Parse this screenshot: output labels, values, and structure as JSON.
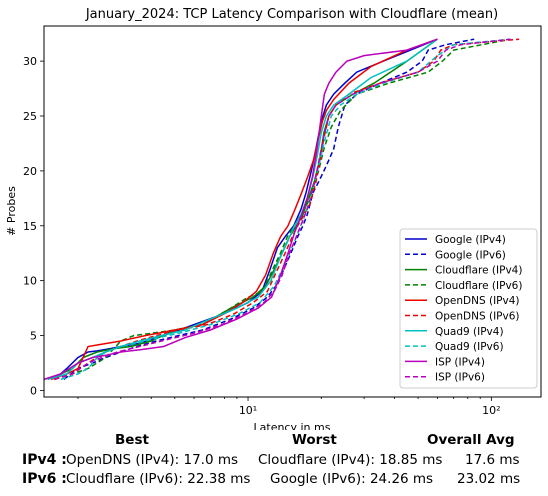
{
  "chart_data": {
    "type": "line",
    "title": "January_2024: TCP Latency Comparison with Cloudflare (mean)",
    "xlabel": "Latency in ms",
    "ylabel": "# Probes",
    "xscale": "log",
    "xlim": [
      1.45,
      160
    ],
    "ylim": [
      -0.6,
      33.2
    ],
    "xticks": [
      {
        "value": 10,
        "label": "10¹"
      },
      {
        "value": 100,
        "label": "10²"
      }
    ],
    "yticks": [
      0,
      5,
      10,
      15,
      20,
      25,
      30
    ],
    "grid": false,
    "legend_position": "lower-right",
    "series": [
      {
        "name": "Google (IPv4)",
        "color": "#0000cc",
        "dash": "solid",
        "x": [
          1.6,
          1.8,
          2.0,
          2.2,
          2.4,
          2.7,
          3.0,
          3.6,
          4.5,
          6.0,
          8.0,
          10.0,
          11.4,
          12.3,
          13.2,
          14.2,
          15.4,
          16.5,
          17.3,
          18.2,
          19.0,
          19.8,
          20.3,
          21.0,
          22.5,
          25.0,
          28.0,
          36.0,
          60.0
        ],
        "y": [
          1,
          2,
          3,
          3.5,
          3.6,
          3.8,
          4.0,
          4.3,
          5.0,
          6.0,
          7.0,
          8.0,
          9.0,
          11.0,
          13.0,
          14.0,
          15.0,
          16.5,
          18.0,
          20.0,
          22.0,
          24.0,
          25.0,
          26.0,
          27.0,
          28.0,
          29.0,
          30.0,
          32.0
        ]
      },
      {
        "name": "Google (IPv6)",
        "color": "#0000cc",
        "dash": "dashed",
        "x": [
          1.75,
          2.0,
          2.3,
          2.6,
          3.0,
          3.5,
          4.2,
          5.2,
          6.5,
          8.5,
          10.5,
          12.0,
          13.0,
          14.0,
          15.0,
          16.0,
          16.8,
          17.5,
          18.5,
          19.5,
          20.5,
          21.5,
          22.5,
          23.5,
          25.0,
          28.0,
          35.0,
          45.0,
          52.0,
          55.0,
          65.0,
          85.0
        ],
        "y": [
          1,
          2,
          2.5,
          3.0,
          3.5,
          4.0,
          4.5,
          5.0,
          5.5,
          6.5,
          7.5,
          8.5,
          9.5,
          11.0,
          12.5,
          14.0,
          15.0,
          16.0,
          18.0,
          19.0,
          20.0,
          21.0,
          22.0,
          24.0,
          26.0,
          27.0,
          28.0,
          29.0,
          30.0,
          31.0,
          31.5,
          32.0
        ]
      },
      {
        "name": "Cloudflare (IPv4)",
        "color": "#008000",
        "dash": "solid",
        "x": [
          1.5,
          1.7,
          1.9,
          2.1,
          2.4,
          2.8,
          3.3,
          4.0,
          5.0,
          6.5,
          8.5,
          10.5,
          11.8,
          12.8,
          13.8,
          14.8,
          15.8,
          16.8,
          17.7,
          18.7,
          19.7,
          20.5,
          21.5,
          23.0,
          27.0,
          33.0,
          45.0,
          60.0
        ],
        "y": [
          1,
          1.5,
          2,
          3,
          3.5,
          3.8,
          4.0,
          4.5,
          5.5,
          6.0,
          7.5,
          8.5,
          9.5,
          11.0,
          12.5,
          14.0,
          15.0,
          16.0,
          17.5,
          19.0,
          21.0,
          23.5,
          25.0,
          26.0,
          27.0,
          28.0,
          30.0,
          32.0
        ]
      },
      {
        "name": "Cloudflare (IPv6)",
        "color": "#008000",
        "dash": "dashed",
        "x": [
          1.6,
          1.9,
          2.2,
          2.6,
          3.0,
          3.4,
          4.0,
          5.0,
          6.5,
          8.5,
          10.0,
          11.5,
          12.6,
          13.6,
          14.5,
          15.5,
          16.5,
          17.5,
          18.5,
          19.5,
          20.5,
          22.0,
          24.0,
          28.0,
          38.0,
          55.0,
          63.0,
          70.0,
          120.0
        ],
        "y": [
          1,
          1.5,
          2.0,
          3.0,
          4.5,
          5.0,
          5.2,
          5.5,
          6.0,
          7.5,
          8.5,
          9.0,
          11.0,
          12.5,
          14.0,
          15.0,
          16.0,
          17.0,
          18.5,
          20.0,
          22.0,
          24.0,
          25.5,
          27.0,
          28.0,
          29.0,
          30.0,
          31.0,
          32.0
        ]
      },
      {
        "name": "OpenDNS (IPv4)",
        "color": "#ee0000",
        "dash": "solid",
        "x": [
          1.55,
          1.8,
          2.0,
          2.1,
          2.2,
          2.5,
          3.0,
          3.8,
          5.0,
          6.5,
          8.0,
          9.5,
          10.8,
          11.8,
          12.7,
          13.6,
          14.6,
          15.6,
          16.6,
          17.6,
          18.6,
          19.5,
          20.2,
          21.0,
          22.5,
          26.0,
          32.0,
          45.0,
          60.0
        ],
        "y": [
          1,
          1.5,
          2,
          3,
          4,
          4.2,
          4.5,
          5.0,
          5.5,
          6.0,
          7.0,
          8.0,
          9.0,
          10.5,
          12.5,
          14.0,
          15.0,
          16.5,
          18.0,
          19.5,
          21.0,
          23.0,
          24.5,
          25.5,
          26.5,
          28.0,
          29.5,
          31.0,
          32.0
        ]
      },
      {
        "name": "OpenDNS (IPv6)",
        "color": "#ee0000",
        "dash": "dashed",
        "x": [
          1.6,
          1.9,
          2.2,
          2.6,
          3.0,
          3.5,
          4.2,
          5.2,
          6.8,
          8.8,
          10.5,
          12.0,
          13.2,
          14.2,
          15.2,
          16.0,
          17.0,
          18.0,
          19.0,
          19.8,
          20.5,
          21.5,
          23.0,
          26.0,
          35.0,
          50.0,
          58.0,
          62.0,
          70.0,
          130.0
        ],
        "y": [
          1,
          1.5,
          2.5,
          3.5,
          4.0,
          4.5,
          5.0,
          5.5,
          6.0,
          7.0,
          8.0,
          9.0,
          11.0,
          12.5,
          14.0,
          15.0,
          16.0,
          17.0,
          19.0,
          21.0,
          23.0,
          25.0,
          26.0,
          27.0,
          28.0,
          29.0,
          30.0,
          31.0,
          31.5,
          32.0
        ]
      },
      {
        "name": "Quad9 (IPv4)",
        "color": "#00c0c0",
        "dash": "solid",
        "x": [
          1.5,
          1.8,
          2.0,
          2.3,
          2.6,
          3.0,
          3.6,
          4.4,
          5.5,
          7.0,
          9.0,
          11.0,
          12.4,
          13.5,
          14.5,
          15.5,
          16.5,
          17.5,
          18.5,
          19.3,
          20.0,
          21.0,
          22.5,
          26.0,
          32.0,
          45.0,
          60.0
        ],
        "y": [
          1,
          1.5,
          2.5,
          3.0,
          3.5,
          4.0,
          4.5,
          5.0,
          5.5,
          6.5,
          7.5,
          8.5,
          10.0,
          12.0,
          13.5,
          15.0,
          16.0,
          17.5,
          19.5,
          21.5,
          23.5,
          25.0,
          26.0,
          27.0,
          28.5,
          30.0,
          32.0
        ]
      },
      {
        "name": "Quad9 (IPv6)",
        "color": "#00c0c0",
        "dash": "dashed",
        "x": [
          1.7,
          2.0,
          2.2,
          2.4,
          2.6,
          3.0,
          3.5,
          4.3,
          5.4,
          7.0,
          9.2,
          11.2,
          12.8,
          13.8,
          14.8,
          15.8,
          16.8,
          17.8,
          18.8,
          19.8,
          20.8,
          22.0,
          24.0,
          28.0,
          36.0,
          50.0,
          60.0,
          70.0,
          120.0
        ],
        "y": [
          1,
          1.5,
          2,
          3.0,
          3.5,
          4.0,
          4.3,
          4.8,
          5.3,
          6.0,
          7.0,
          8.0,
          9.5,
          11.0,
          12.5,
          14.0,
          15.5,
          17.0,
          19.0,
          21.0,
          23.0,
          25.0,
          26.0,
          27.0,
          28.0,
          29.0,
          30.5,
          31.5,
          32.0
        ]
      },
      {
        "name": "ISP (IPv4)",
        "color": "#bb00bb",
        "dash": "solid",
        "x": [
          1.45,
          1.7,
          2.0,
          2.3,
          2.6,
          3.0,
          3.6,
          4.5,
          5.5,
          7.0,
          9.0,
          11.0,
          12.5,
          13.6,
          14.6,
          15.6,
          16.6,
          17.5,
          18.4,
          19.2,
          20.0,
          20.6,
          21.5,
          23.0,
          25.5,
          30.0,
          45.0,
          60.0
        ],
        "y": [
          1,
          1.5,
          2.5,
          3.0,
          3.2,
          3.5,
          3.7,
          4.0,
          4.8,
          5.5,
          6.5,
          7.5,
          8.5,
          10.5,
          12.5,
          14.5,
          16.0,
          17.5,
          19.5,
          22.0,
          25.0,
          27.0,
          28.0,
          29.0,
          30.0,
          30.5,
          31.0,
          32.0
        ]
      },
      {
        "name": "ISP (IPv6)",
        "color": "#bb00bb",
        "dash": "dashed",
        "x": [
          1.6,
          1.9,
          2.2,
          2.5,
          2.9,
          3.3,
          3.9,
          4.8,
          6.0,
          7.8,
          9.8,
          11.6,
          12.8,
          13.8,
          14.8,
          15.8,
          16.8,
          17.8,
          18.8,
          19.6,
          20.4,
          21.5,
          23.0,
          27.0,
          35.0,
          50.0,
          60.0,
          65.0,
          75.0,
          120.0
        ],
        "y": [
          1,
          1.5,
          2.5,
          3.0,
          3.5,
          3.8,
          4.2,
          4.7,
          5.2,
          6.0,
          7.0,
          8.0,
          9.0,
          10.5,
          12.5,
          14.0,
          15.5,
          17.0,
          19.0,
          21.0,
          23.0,
          25.0,
          26.0,
          27.0,
          28.0,
          29.0,
          30.0,
          31.0,
          31.5,
          32.0
        ]
      }
    ]
  },
  "summary": {
    "headers": {
      "best": "Best",
      "worst": "Worst",
      "avg": "Overall Avg"
    },
    "rows": [
      {
        "label": "IPv4 :",
        "best": "OpenDNS (IPv4): 17.0 ms",
        "worst": "Cloudflare (IPv4): 18.85 ms",
        "avg": "17.6 ms"
      },
      {
        "label": "IPv6 :",
        "best": "Cloudflare (IPv6): 22.38 ms",
        "worst": "Google (IPv6): 24.26 ms",
        "avg": "23.02 ms"
      }
    ]
  }
}
